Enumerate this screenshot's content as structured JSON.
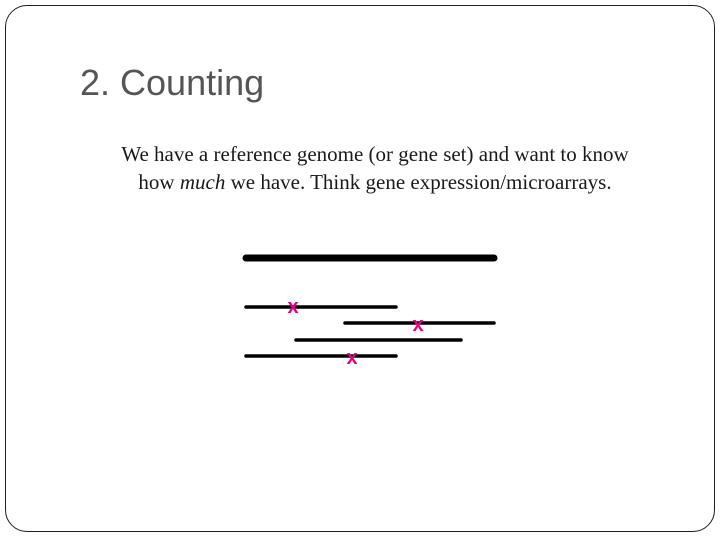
{
  "slide": {
    "title": "2. Counting",
    "body": {
      "line1": "We have a reference genome (or gene set) and want to know",
      "line2_before": "how ",
      "line2_emphasis": "much",
      "line2_after": " we have.  Think gene expression/microarrays."
    }
  },
  "diagram": {
    "reference_color": "#000000",
    "read_color": "#000000",
    "mismatch_color": "#e6007e",
    "mismatch_glyph": "x"
  }
}
